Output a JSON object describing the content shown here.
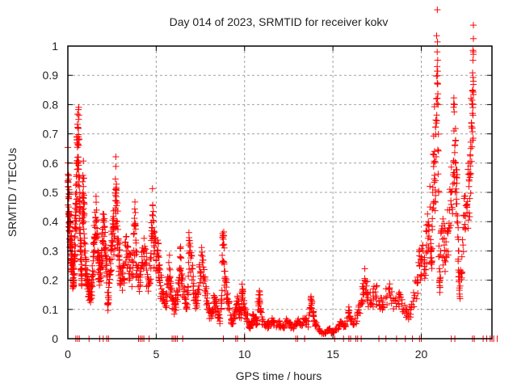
{
  "chart_data": {
    "type": "scatter",
    "title": "Day 014 of 2023, SRMTID for receiver kokv",
    "xlabel": "GPS time / hours",
    "ylabel": "SRMTID / TECUs",
    "xlim": [
      0,
      24
    ],
    "ylim": [
      0,
      1
    ],
    "xticks": [
      0,
      5,
      10,
      15,
      20
    ],
    "xtick_labels": [
      "0",
      "5",
      "10",
      "15",
      "20"
    ],
    "yticks": [
      0,
      0.1,
      0.2,
      0.3,
      0.4,
      0.5,
      0.6,
      0.7,
      0.8,
      0.9,
      1
    ],
    "ytick_labels": [
      "0",
      "0.1",
      "0.2",
      "0.3",
      "0.4",
      "0.5",
      "0.6",
      "0.7",
      "0.8",
      "0.9",
      "1"
    ],
    "grid": true,
    "legend": "none",
    "marker": "+",
    "color": "#ff0000",
    "series": [
      {
        "name": "SRMTID",
        "points": [
          [
            0.0,
            0.54
          ],
          [
            0.02,
            0.52
          ],
          [
            0.05,
            0.48
          ],
          [
            0.05,
            0.45
          ],
          [
            0.08,
            0.42
          ],
          [
            0.1,
            0.4
          ],
          [
            0.12,
            0.37
          ],
          [
            0.15,
            0.33
          ],
          [
            0.18,
            0.31
          ],
          [
            0.2,
            0.29
          ],
          [
            0.22,
            0.27
          ],
          [
            0.25,
            0.25
          ],
          [
            0.28,
            0.22
          ],
          [
            0.3,
            0.2
          ],
          [
            0.32,
            0.19
          ],
          [
            0.35,
            0.24
          ],
          [
            0.38,
            0.3
          ],
          [
            0.4,
            0.35
          ],
          [
            0.42,
            0.38
          ],
          [
            0.45,
            0.42
          ],
          [
            0.48,
            0.5
          ],
          [
            0.5,
            0.56
          ],
          [
            0.52,
            0.6
          ],
          [
            0.55,
            0.62
          ],
          [
            0.58,
            0.58
          ],
          [
            0.6,
            0.69
          ],
          [
            0.62,
            0.68
          ],
          [
            0.65,
            0.52
          ],
          [
            0.68,
            0.45
          ],
          [
            0.7,
            0.36
          ],
          [
            0.72,
            0.3
          ],
          [
            0.75,
            0.27
          ],
          [
            0.78,
            0.24
          ],
          [
            0.8,
            0.22
          ],
          [
            0.85,
            0.5
          ],
          [
            0.88,
            0.52
          ],
          [
            0.9,
            0.48
          ],
          [
            0.92,
            0.42
          ],
          [
            0.95,
            0.3
          ],
          [
            1.0,
            0.25
          ],
          [
            1.05,
            0.22
          ],
          [
            1.1,
            0.2
          ],
          [
            1.15,
            0.18
          ],
          [
            1.2,
            0.17
          ],
          [
            1.25,
            0.16
          ],
          [
            1.3,
            0.15
          ],
          [
            1.35,
            0.18
          ],
          [
            1.4,
            0.22
          ],
          [
            1.45,
            0.28
          ],
          [
            1.5,
            0.33
          ],
          [
            1.55,
            0.38
          ],
          [
            1.6,
            0.4
          ],
          [
            1.65,
            0.35
          ],
          [
            1.7,
            0.3
          ],
          [
            1.75,
            0.26
          ],
          [
            1.8,
            0.22
          ],
          [
            1.85,
            0.24
          ],
          [
            1.9,
            0.28
          ],
          [
            1.95,
            0.33
          ],
          [
            2.0,
            0.38
          ],
          [
            2.05,
            0.35
          ],
          [
            2.1,
            0.3
          ],
          [
            2.15,
            0.28
          ],
          [
            2.2,
            0.25
          ],
          [
            2.25,
            0.12
          ],
          [
            2.3,
            0.14
          ],
          [
            2.35,
            0.22
          ],
          [
            2.4,
            0.27
          ],
          [
            2.45,
            0.3
          ],
          [
            2.5,
            0.33
          ],
          [
            2.55,
            0.36
          ],
          [
            2.6,
            0.38
          ],
          [
            2.65,
            0.35
          ],
          [
            2.7,
            0.49
          ],
          [
            2.72,
            0.51
          ],
          [
            2.75,
            0.47
          ],
          [
            2.8,
            0.4
          ],
          [
            2.85,
            0.33
          ],
          [
            2.9,
            0.28
          ],
          [
            2.95,
            0.24
          ],
          [
            3.0,
            0.22
          ],
          [
            3.1,
            0.2
          ],
          [
            3.2,
            0.25
          ],
          [
            3.3,
            0.3
          ],
          [
            3.4,
            0.28
          ],
          [
            3.5,
            0.24
          ],
          [
            3.6,
            0.22
          ],
          [
            3.7,
            0.26
          ],
          [
            3.75,
            0.36
          ],
          [
            3.8,
            0.39
          ],
          [
            3.85,
            0.3
          ],
          [
            3.9,
            0.25
          ],
          [
            4.0,
            0.2
          ],
          [
            4.1,
            0.22
          ],
          [
            4.2,
            0.26
          ],
          [
            4.3,
            0.3
          ],
          [
            4.4,
            0.26
          ],
          [
            4.5,
            0.22
          ],
          [
            4.6,
            0.2
          ],
          [
            4.7,
            0.24
          ],
          [
            4.75,
            0.38
          ],
          [
            4.8,
            0.42
          ],
          [
            4.85,
            0.36
          ],
          [
            4.9,
            0.3
          ],
          [
            5.0,
            0.27
          ],
          [
            5.1,
            0.3
          ],
          [
            5.15,
            0.25
          ],
          [
            5.2,
            0.2
          ],
          [
            5.3,
            0.17
          ],
          [
            5.4,
            0.14
          ],
          [
            5.5,
            0.12
          ],
          [
            5.6,
            0.15
          ],
          [
            5.7,
            0.2
          ],
          [
            5.75,
            0.24
          ],
          [
            5.8,
            0.18
          ],
          [
            5.9,
            0.14
          ],
          [
            6.0,
            0.1
          ],
          [
            6.1,
            0.12
          ],
          [
            6.2,
            0.16
          ],
          [
            6.3,
            0.2
          ],
          [
            6.35,
            0.28
          ],
          [
            6.4,
            0.24
          ],
          [
            6.5,
            0.18
          ],
          [
            6.6,
            0.14
          ],
          [
            6.7,
            0.12
          ],
          [
            6.8,
            0.15
          ],
          [
            6.85,
            0.32
          ],
          [
            6.9,
            0.3
          ],
          [
            7.0,
            0.24
          ],
          [
            7.1,
            0.18
          ],
          [
            7.2,
            0.14
          ],
          [
            7.3,
            0.12
          ],
          [
            7.4,
            0.18
          ],
          [
            7.5,
            0.23
          ],
          [
            7.6,
            0.26
          ],
          [
            7.7,
            0.21
          ],
          [
            7.8,
            0.16
          ],
          [
            7.9,
            0.12
          ],
          [
            8.0,
            0.09
          ],
          [
            8.1,
            0.07
          ],
          [
            8.2,
            0.1
          ],
          [
            8.3,
            0.14
          ],
          [
            8.4,
            0.12
          ],
          [
            8.5,
            0.08
          ],
          [
            8.6,
            0.06
          ],
          [
            8.7,
            0.12
          ],
          [
            8.75,
            0.32
          ],
          [
            8.8,
            0.34
          ],
          [
            8.85,
            0.26
          ],
          [
            8.9,
            0.2
          ],
          [
            9.0,
            0.15
          ],
          [
            9.1,
            0.12
          ],
          [
            9.2,
            0.08
          ],
          [
            9.3,
            0.05
          ],
          [
            9.4,
            0.07
          ],
          [
            9.5,
            0.1
          ],
          [
            9.6,
            0.12
          ],
          [
            9.7,
            0.1
          ],
          [
            9.8,
            0.07
          ],
          [
            9.85,
            0.16
          ],
          [
            9.9,
            0.14
          ],
          [
            10.0,
            0.1
          ],
          [
            10.1,
            0.08
          ],
          [
            10.2,
            0.06
          ],
          [
            10.3,
            0.04
          ],
          [
            10.4,
            0.06
          ],
          [
            10.5,
            0.08
          ],
          [
            10.6,
            0.07
          ],
          [
            10.7,
            0.05
          ],
          [
            10.8,
            0.15
          ],
          [
            10.85,
            0.16
          ],
          [
            10.9,
            0.1
          ],
          [
            11.0,
            0.06
          ],
          [
            11.2,
            0.04
          ],
          [
            11.4,
            0.05
          ],
          [
            11.6,
            0.06
          ],
          [
            11.8,
            0.04
          ],
          [
            12.0,
            0.05
          ],
          [
            12.2,
            0.04
          ],
          [
            12.4,
            0.06
          ],
          [
            12.6,
            0.05
          ],
          [
            12.8,
            0.04
          ],
          [
            13.0,
            0.06
          ],
          [
            13.2,
            0.05
          ],
          [
            13.4,
            0.07
          ],
          [
            13.6,
            0.04
          ],
          [
            13.75,
            0.14
          ],
          [
            13.8,
            0.12
          ],
          [
            13.9,
            0.08
          ],
          [
            14.0,
            0.05
          ],
          [
            14.2,
            0.03
          ],
          [
            14.4,
            0.02
          ],
          [
            14.6,
            0.02
          ],
          [
            14.8,
            0.03
          ],
          [
            15.0,
            0.02
          ],
          [
            15.2,
            0.03
          ],
          [
            15.4,
            0.05
          ],
          [
            15.6,
            0.04
          ],
          [
            15.8,
            0.06
          ],
          [
            15.9,
            0.09
          ],
          [
            16.0,
            0.06
          ],
          [
            16.2,
            0.05
          ],
          [
            16.4,
            0.08
          ],
          [
            16.6,
            0.12
          ],
          [
            16.7,
            0.17
          ],
          [
            16.8,
            0.2
          ],
          [
            16.9,
            0.18
          ],
          [
            17.0,
            0.14
          ],
          [
            17.2,
            0.12
          ],
          [
            17.4,
            0.16
          ],
          [
            17.6,
            0.13
          ],
          [
            17.8,
            0.11
          ],
          [
            18.0,
            0.14
          ],
          [
            18.2,
            0.17
          ],
          [
            18.4,
            0.13
          ],
          [
            18.6,
            0.12
          ],
          [
            18.8,
            0.15
          ],
          [
            19.0,
            0.1
          ],
          [
            19.2,
            0.08
          ],
          [
            19.4,
            0.1
          ],
          [
            19.6,
            0.14
          ],
          [
            19.8,
            0.2
          ],
          [
            19.9,
            0.25
          ],
          [
            20.0,
            0.28
          ],
          [
            20.1,
            0.3
          ],
          [
            20.2,
            0.26
          ],
          [
            20.3,
            0.32
          ],
          [
            20.4,
            0.4
          ],
          [
            20.5,
            0.45
          ],
          [
            20.55,
            0.3
          ],
          [
            20.6,
            0.24
          ],
          [
            20.65,
            0.5
          ],
          [
            20.7,
            0.6
          ],
          [
            20.75,
            0.64
          ],
          [
            20.8,
            0.54
          ],
          [
            20.85,
            0.82
          ],
          [
            20.9,
            0.93
          ],
          [
            20.92,
            0.87
          ],
          [
            20.95,
            0.8
          ],
          [
            21.0,
            0.28
          ],
          [
            21.05,
            0.2
          ],
          [
            21.1,
            0.3
          ],
          [
            21.2,
            0.34
          ],
          [
            21.3,
            0.32
          ],
          [
            21.4,
            0.28
          ],
          [
            21.5,
            0.36
          ],
          [
            21.6,
            0.44
          ],
          [
            21.7,
            0.5
          ],
          [
            21.8,
            0.56
          ],
          [
            21.85,
            0.71
          ],
          [
            21.9,
            0.66
          ],
          [
            21.95,
            0.6
          ],
          [
            22.0,
            0.5
          ],
          [
            22.05,
            0.42
          ],
          [
            22.1,
            0.3
          ],
          [
            22.15,
            0.2
          ],
          [
            22.2,
            0.18
          ],
          [
            22.3,
            0.28
          ],
          [
            22.4,
            0.38
          ],
          [
            22.5,
            0.42
          ],
          [
            22.6,
            0.46
          ],
          [
            22.7,
            0.52
          ],
          [
            22.75,
            0.56
          ],
          [
            22.8,
            0.65
          ],
          [
            22.85,
            0.72
          ],
          [
            22.9,
            0.77
          ],
          [
            22.92,
            0.79
          ],
          [
            22.95,
            0.88
          ]
        ]
      }
    ],
    "zero_points_hours": [
      0.45,
      0.55,
      0.65,
      1.2,
      1.8,
      2.0,
      2.2,
      2.3,
      4.0,
      4.1,
      4.2,
      4.3,
      4.6,
      5.9,
      6.0,
      6.1,
      6.2,
      6.5,
      8.8,
      9.5,
      9.6,
      10.0,
      12.9,
      13.0,
      13.4,
      15.1,
      15.6,
      15.9,
      16.0,
      16.3,
      16.4,
      16.6,
      17.6,
      18.0,
      18.6,
      19.1,
      19.5,
      19.9,
      20.0,
      21.7,
      21.9,
      22.9,
      23.0,
      23.5,
      23.7,
      23.9,
      24.0,
      24.1,
      24.3
    ]
  }
}
